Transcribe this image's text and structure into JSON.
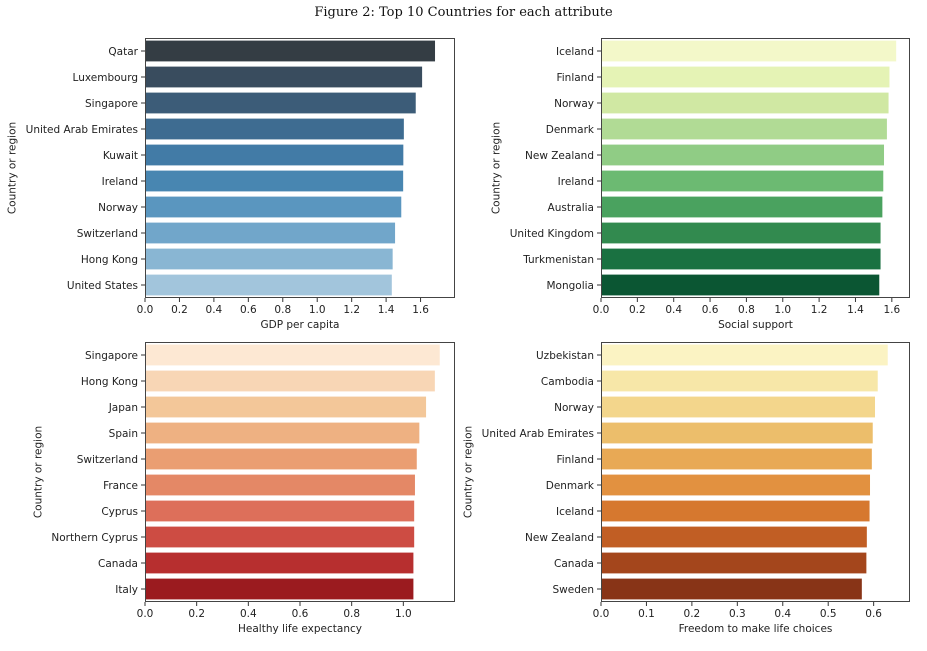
{
  "figure_title": "Figure 2: Top 10 Countries for each attribute",
  "chart_data": [
    {
      "type": "bar",
      "orientation": "horizontal",
      "categories": [
        "Qatar",
        "Luxembourg",
        "Singapore",
        "United Arab Emirates",
        "Kuwait",
        "Ireland",
        "Norway",
        "Switzerland",
        "Hong Kong",
        "United States"
      ],
      "values": [
        1.684,
        1.609,
        1.572,
        1.503,
        1.5,
        1.499,
        1.488,
        1.452,
        1.438,
        1.433
      ],
      "xlabel": "GDP per capita",
      "ylabel": "Country or region",
      "xlim": [
        0,
        1.8
      ],
      "xticks": [
        "0.0",
        "0.2",
        "0.4",
        "0.6",
        "0.8",
        "1.0",
        "1.2",
        "1.4",
        "1.6"
      ],
      "colors": [
        "#343d44",
        "#394c5e",
        "#3c5c78",
        "#3e6c91",
        "#427ba6",
        "#4886b1",
        "#5a96bf",
        "#71a6ca",
        "#89b6d3",
        "#a2c5dc"
      ]
    },
    {
      "type": "bar",
      "orientation": "horizontal",
      "categories": [
        "Iceland",
        "Finland",
        "Norway",
        "Denmark",
        "New Zealand",
        "Ireland",
        "Australia",
        "United Kingdom",
        "Turkmenistan",
        "Mongolia"
      ],
      "values": [
        1.624,
        1.587,
        1.582,
        1.573,
        1.557,
        1.553,
        1.548,
        1.538,
        1.538,
        1.531
      ],
      "xlabel": "Social support",
      "ylabel": "Country or region",
      "xlim": [
        0,
        1.7
      ],
      "xticks": [
        "0.0",
        "0.2",
        "0.4",
        "0.6",
        "0.8",
        "1.0",
        "1.2",
        "1.4",
        "1.6"
      ],
      "colors": [
        "#f3f8c9",
        "#e5f3b5",
        "#d0e8a3",
        "#b1db95",
        "#90cc85",
        "#6cba72",
        "#4aa25f",
        "#328a4f",
        "#1a7141",
        "#0b5633"
      ]
    },
    {
      "type": "bar",
      "orientation": "horizontal",
      "categories": [
        "Singapore",
        "Hong Kong",
        "Japan",
        "Spain",
        "Switzerland",
        "France",
        "Cyprus",
        "Northern Cyprus",
        "Canada",
        "Italy"
      ],
      "values": [
        1.141,
        1.122,
        1.088,
        1.062,
        1.052,
        1.045,
        1.042,
        1.042,
        1.039,
        1.039
      ],
      "xlabel": "Healthy life expectancy",
      "ylabel": "Country or region",
      "xlim": [
        0,
        1.2
      ],
      "xticks": [
        "0.0",
        "0.2",
        "0.4",
        "0.6",
        "0.8",
        "1.0"
      ],
      "colors": [
        "#fde8d3",
        "#f8d6b5",
        "#f3c799",
        "#eeb182",
        "#ea9e72",
        "#e48866",
        "#dd6f5a",
        "#cd4c43",
        "#b72f2f",
        "#9b1b1f"
      ]
    },
    {
      "type": "bar",
      "orientation": "horizontal",
      "categories": [
        "Uzbekistan",
        "Cambodia",
        "Norway",
        "United Arab Emirates",
        "Finland",
        "Denmark",
        "Iceland",
        "New Zealand",
        "Canada",
        "Sweden"
      ],
      "values": [
        0.631,
        0.609,
        0.603,
        0.598,
        0.596,
        0.592,
        0.591,
        0.585,
        0.584,
        0.574
      ],
      "xlabel": "Freedom to make life choices",
      "ylabel": "Country or region",
      "xlim": [
        0,
        0.68
      ],
      "xticks": [
        "0.0",
        "0.1",
        "0.2",
        "0.3",
        "0.4",
        "0.5",
        "0.6"
      ],
      "colors": [
        "#fbf3c3",
        "#f7e7a8",
        "#f3d68c",
        "#ecbe6b",
        "#e8a955",
        "#e29140",
        "#d6782f",
        "#c15e24",
        "#a4461c",
        "#883417"
      ]
    }
  ]
}
